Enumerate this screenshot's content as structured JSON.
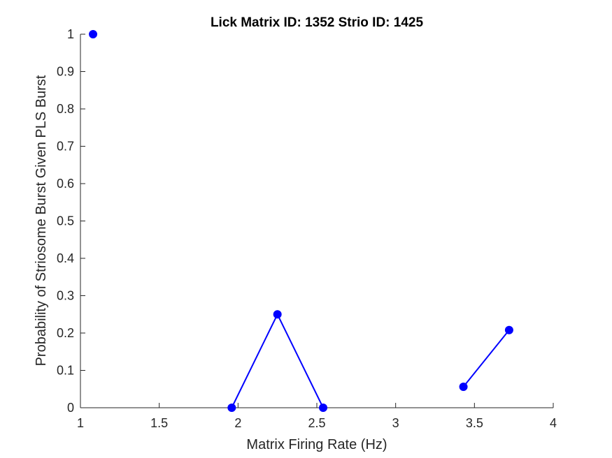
{
  "chart_data": {
    "type": "line",
    "title": "Lick Matrix ID: 1352 Strio ID: 1425",
    "xlabel": "Matrix Firing Rate (Hz)",
    "ylabel": "Probability of Striosome Burst Given PLS Burst",
    "xlim": [
      1,
      4
    ],
    "ylim": [
      0,
      1
    ],
    "xticks": [
      1,
      1.5,
      2,
      2.5,
      3,
      3.5,
      4
    ],
    "xtick_labels": [
      "1",
      "1.5",
      "2",
      "2.5",
      "3",
      "3.5",
      "4"
    ],
    "yticks": [
      0,
      0.1,
      0.2,
      0.3,
      0.4,
      0.5,
      0.6,
      0.7,
      0.8,
      0.9,
      1
    ],
    "ytick_labels": [
      "0",
      "0.1",
      "0.2",
      "0.3",
      "0.4",
      "0.5",
      "0.6",
      "0.7",
      "0.8",
      "0.9",
      "1"
    ],
    "grid": false,
    "series_color": "#0000ff",
    "segments": [
      [
        {
          "x": 1.08,
          "y": 1.0
        }
      ],
      [
        {
          "x": 1.96,
          "y": 0.0
        },
        {
          "x": 2.25,
          "y": 0.25
        },
        {
          "x": 2.54,
          "y": 0.0
        }
      ],
      [
        {
          "x": 3.43,
          "y": 0.056
        },
        {
          "x": 3.72,
          "y": 0.208
        }
      ]
    ]
  }
}
